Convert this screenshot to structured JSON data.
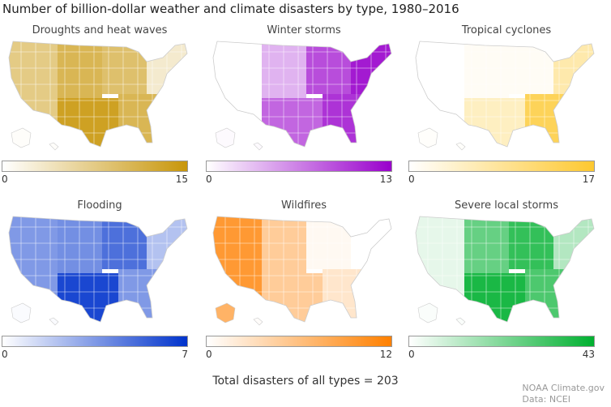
{
  "title": "Number of billion-dollar weather and climate disasters by type, 1980–2016",
  "panels": [
    {
      "title": "Droughts and heat waves",
      "color": "#c8960a",
      "min": "0",
      "max": "15",
      "regions": {
        "west": 0.5,
        "plains": 0.7,
        "south": 0.9,
        "midwest": 0.6,
        "southeast": 0.7,
        "northeast": 0.2
      }
    },
    {
      "title": "Winter storms",
      "color": "#9900cc",
      "min": "0",
      "max": "13",
      "regions": {
        "west": 0,
        "plains": 0.3,
        "south": 0.6,
        "midwest": 0.7,
        "southeast": 0.8,
        "northeast": 0.9
      }
    },
    {
      "title": "Tropical cyclones",
      "color": "#fdc830",
      "min": "0",
      "max": "17",
      "regions": {
        "west": 0,
        "plains": 0.05,
        "south": 0.3,
        "midwest": 0.05,
        "southeast": 0.8,
        "northeast": 0.4
      }
    },
    {
      "title": "Flooding",
      "color": "#0033cc",
      "min": "0",
      "max": "7",
      "regions": {
        "west": 0.5,
        "plains": 0.55,
        "south": 0.9,
        "midwest": 0.7,
        "southeast": 0.5,
        "northeast": 0.3
      }
    },
    {
      "title": "Wildfires",
      "color": "#ff8000",
      "min": "0",
      "max": "12",
      "regions": {
        "west": 0.8,
        "plains": 0.4,
        "south": 0.4,
        "midwest": 0.05,
        "southeast": 0.2,
        "northeast": 0
      }
    },
    {
      "title": "Severe local storms",
      "color": "#00b030",
      "min": "0",
      "max": "43",
      "regions": {
        "west": 0.1,
        "plains": 0.6,
        "south": 0.9,
        "midwest": 0.8,
        "southeast": 0.7,
        "northeast": 0.3
      }
    }
  ],
  "total": "Total disasters of all types = 203",
  "credit": {
    "line1": "NOAA Climate.gov",
    "line2": "Data: NCEI"
  }
}
